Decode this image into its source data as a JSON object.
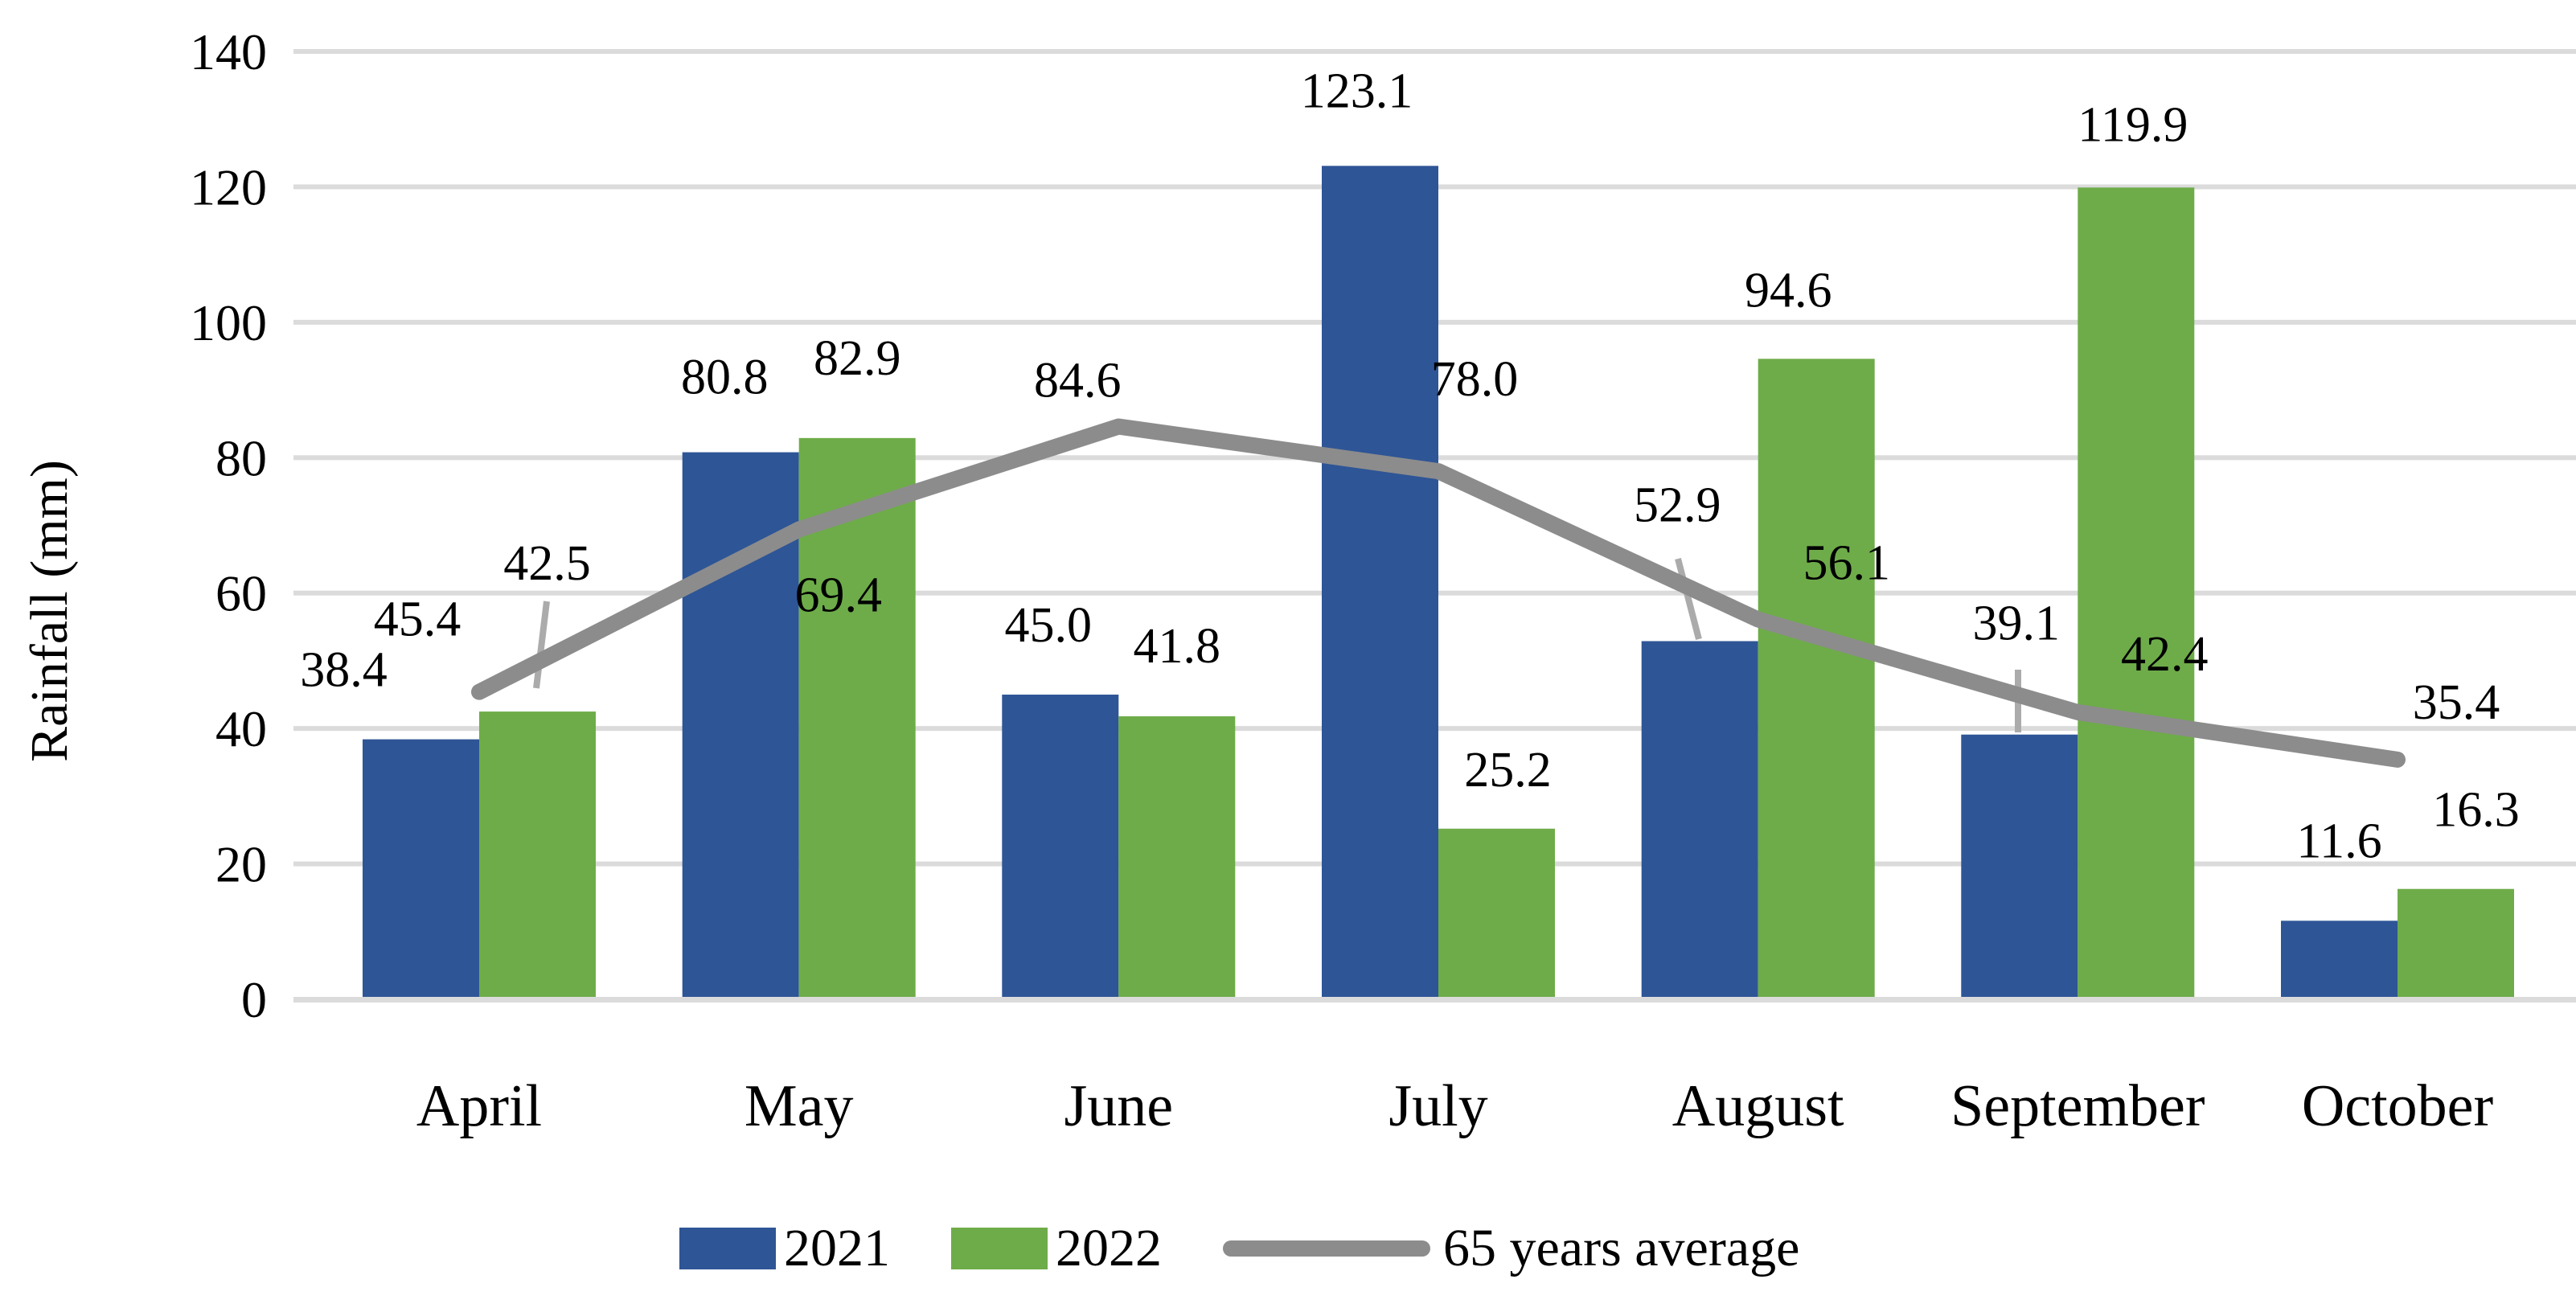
{
  "chart_data": {
    "type": "bar",
    "subtype": "grouped-bars-with-line-overlay",
    "title": "",
    "categories": [
      "April",
      "May",
      "June",
      "July",
      "August",
      "September",
      "October"
    ],
    "bar_series": [
      {
        "name": "2021",
        "color": "#2E5596",
        "values": [
          38.4,
          80.8,
          45.0,
          123.1,
          52.9,
          39.1,
          11.6
        ]
      },
      {
        "name": "2022",
        "color": "#6EAC49",
        "values": [
          42.5,
          82.9,
          41.8,
          25.2,
          94.6,
          119.9,
          16.3
        ]
      }
    ],
    "line_series": {
      "name": "65 years average",
      "color": "#8C8C8C",
      "values": [
        45.4,
        69.4,
        84.6,
        78.0,
        56.1,
        42.4,
        35.4
      ]
    },
    "data_labels": {
      "2021": [
        "38.4",
        "80.8",
        "45.0",
        "123.1",
        "52.9",
        "39.1",
        "11.6"
      ],
      "2022": [
        "42.5",
        "82.9",
        "41.8",
        "25.2",
        "94.6",
        "119.9",
        "16.3"
      ],
      "65_years_average": [
        "45.4",
        "69.4",
        "84.6",
        "78.0",
        "56.1",
        "42.4",
        "35.4"
      ]
    },
    "callouts": [
      "2022-April",
      "2021-August",
      "2021-September"
    ],
    "xlabel": "",
    "ylabel": "Rainfall (mm)",
    "ylim": [
      0,
      140
    ],
    "ytick_step": 20,
    "ytick_labels": [
      "0",
      "20",
      "40",
      "60",
      "80",
      "100",
      "120",
      "140"
    ],
    "grid": "horizontal",
    "gridline_color": "#DBDBDB",
    "axis_line_color": "#DBDBDB",
    "leader_line_color": "#ABABAB",
    "label_color": "#000000",
    "legend_position": "bottom-center"
  }
}
